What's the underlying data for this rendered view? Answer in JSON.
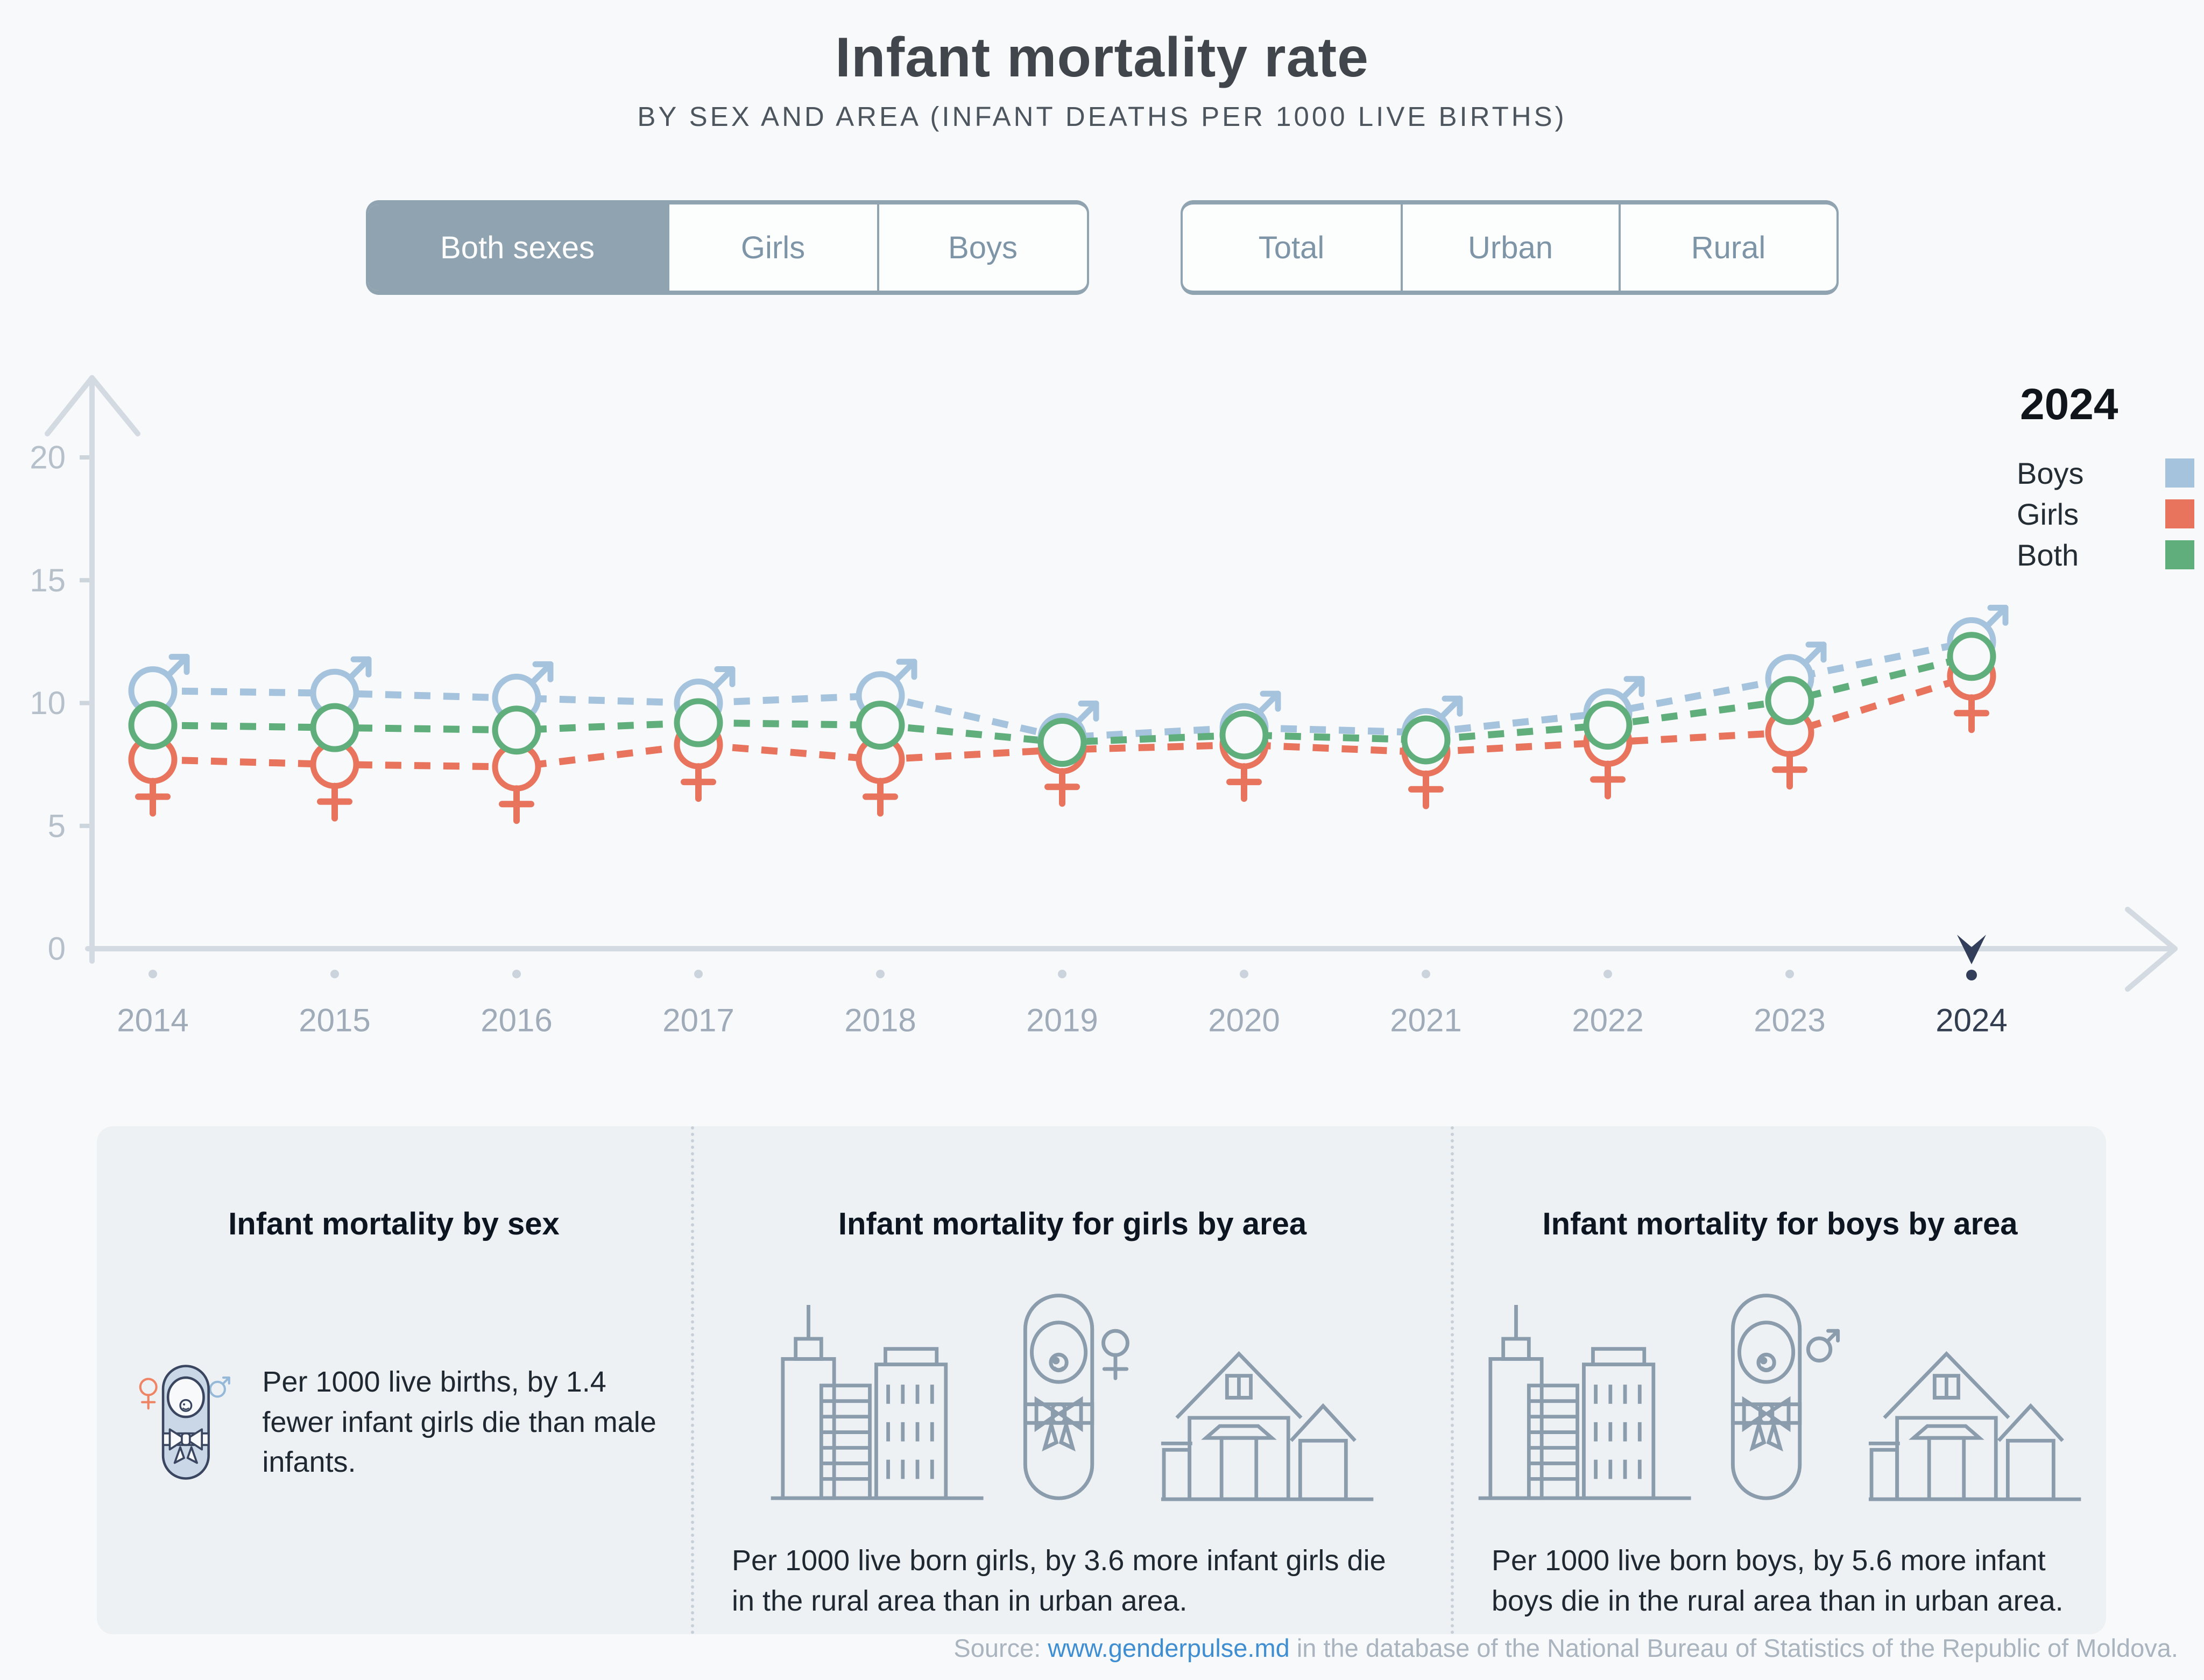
{
  "title": "Infant mortality rate",
  "subtitle": "BY SEX AND AREA (INFANT DEATHS PER 1000 LIVE BIRTHS)",
  "controls": {
    "sex": {
      "selected": "Both sexes",
      "options": [
        "Both sexes",
        "Girls",
        "Boys"
      ]
    },
    "area": {
      "selected": "",
      "options": [
        "Total",
        "Urban",
        "Rural"
      ]
    }
  },
  "legend": {
    "year": "2024",
    "items": [
      {
        "label": "Boys",
        "color": "#a6c3de"
      },
      {
        "label": "Girls",
        "color": "#e8745e"
      },
      {
        "label": "Both",
        "color": "#60ae7b"
      }
    ]
  },
  "chart_data": {
    "type": "line",
    "title": "Infant mortality rate by sex (infant deaths per 1000 live births)",
    "x": [
      "2014",
      "2015",
      "2016",
      "2017",
      "2018",
      "2019",
      "2020",
      "2021",
      "2022",
      "2023",
      "2024"
    ],
    "series": [
      {
        "name": "Boys",
        "color": "#a6c3de",
        "marker": "male",
        "values": [
          10.5,
          10.4,
          10.2,
          10.0,
          10.3,
          8.6,
          9.0,
          8.8,
          9.6,
          11.0,
          12.5
        ]
      },
      {
        "name": "Girls",
        "color": "#e8745e",
        "marker": "female",
        "values": [
          7.7,
          7.5,
          7.4,
          8.3,
          7.7,
          8.1,
          8.3,
          8.0,
          8.4,
          8.8,
          11.1
        ]
      },
      {
        "name": "Both",
        "color": "#60ae7b",
        "marker": "circle",
        "values": [
          9.1,
          9.0,
          8.9,
          9.2,
          9.1,
          8.4,
          8.7,
          8.5,
          9.1,
          10.1,
          11.9
        ]
      }
    ],
    "ylim": [
      0,
      20
    ],
    "yticks": [
      0,
      5,
      10,
      15,
      20
    ],
    "selected_x": "2024",
    "grid": false,
    "line_style": "dashed",
    "legend_position": "top-right"
  },
  "cards": [
    {
      "title": "Infant mortality by sex",
      "text": "Per 1000 live births, by 1.4 fewer infant girls die than male infants."
    },
    {
      "title": "Infant mortality for girls by area",
      "text": "Per 1000 live born girls, by 3.6 more infant girls die in the rural area than in urban area."
    },
    {
      "title": "Infant mortality for boys by area",
      "text": "Per 1000 live born boys, by 5.6 more infant boys die in the rural area than in urban area."
    }
  ],
  "source": {
    "prefix": "Source: ",
    "link_text": "www.genderpulse.md",
    "suffix": " in the database of the National Bureau of Statistics of the Republic of Moldova."
  }
}
